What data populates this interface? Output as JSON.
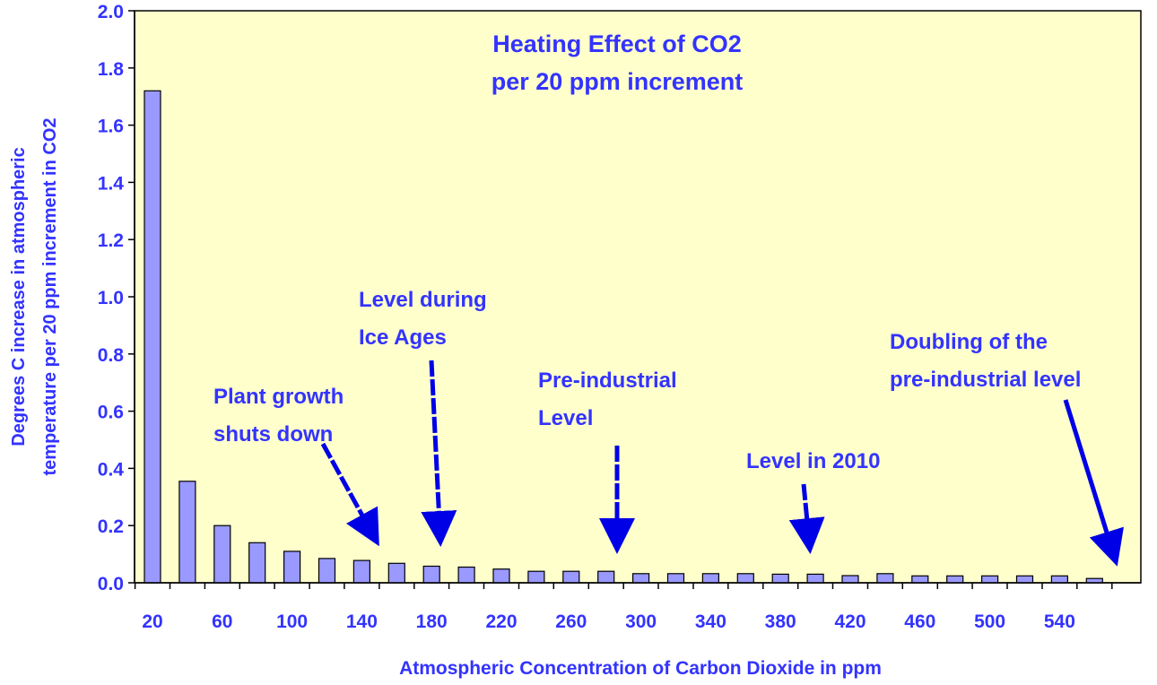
{
  "colors": {
    "plot_background": "#ffffcc",
    "bar_fill": "#9999ff",
    "bar_stroke": "#000000",
    "text": "#3333ff",
    "arrow": "#0000e6"
  },
  "chart_data": {
    "type": "bar",
    "title": "Heating Effect of CO2",
    "subtitle": "per 20 ppm increment",
    "xlabel": "Atmospheric Concentration of Carbon Dioxide in ppm",
    "ylabel_line1": "Degrees C increase in atmospheric",
    "ylabel_line2": "temperature per 20 ppm increment in CO2",
    "ylim": [
      0,
      2.0
    ],
    "yticks": [
      "0.0",
      "0.2",
      "0.4",
      "0.6",
      "0.8",
      "1.0",
      "1.2",
      "1.4",
      "1.6",
      "1.8",
      "2.0"
    ],
    "categories": [
      20,
      40,
      60,
      80,
      100,
      120,
      140,
      160,
      180,
      200,
      220,
      240,
      260,
      280,
      300,
      320,
      340,
      360,
      380,
      400,
      420,
      440,
      460,
      480,
      500,
      520,
      540,
      560
    ],
    "xtick_labels": [
      "20",
      "60",
      "100",
      "140",
      "180",
      "220",
      "260",
      "300",
      "340",
      "380",
      "420",
      "460",
      "500",
      "540"
    ],
    "values": [
      1.72,
      0.355,
      0.2,
      0.14,
      0.11,
      0.085,
      0.078,
      0.068,
      0.058,
      0.055,
      0.048,
      0.04,
      0.04,
      0.04,
      0.032,
      0.032,
      0.032,
      0.032,
      0.03,
      0.03,
      0.025,
      0.032,
      0.024,
      0.024,
      0.024,
      0.024,
      0.024,
      0.015
    ],
    "grid": false,
    "legend": "none",
    "annotations": [
      {
        "lines": [
          "Plant growth",
          "shuts down"
        ],
        "target_x": 140
      },
      {
        "lines": [
          "Level during",
          "Ice Ages"
        ],
        "target_x": 180
      },
      {
        "lines": [
          "Pre-industrial",
          "Level"
        ],
        "target_x": 280
      },
      {
        "lines": [
          "Level  in 2010"
        ],
        "target_x": 390
      },
      {
        "lines": [
          "Doubling of the",
          "pre-industrial level"
        ],
        "target_x": 560
      }
    ]
  }
}
